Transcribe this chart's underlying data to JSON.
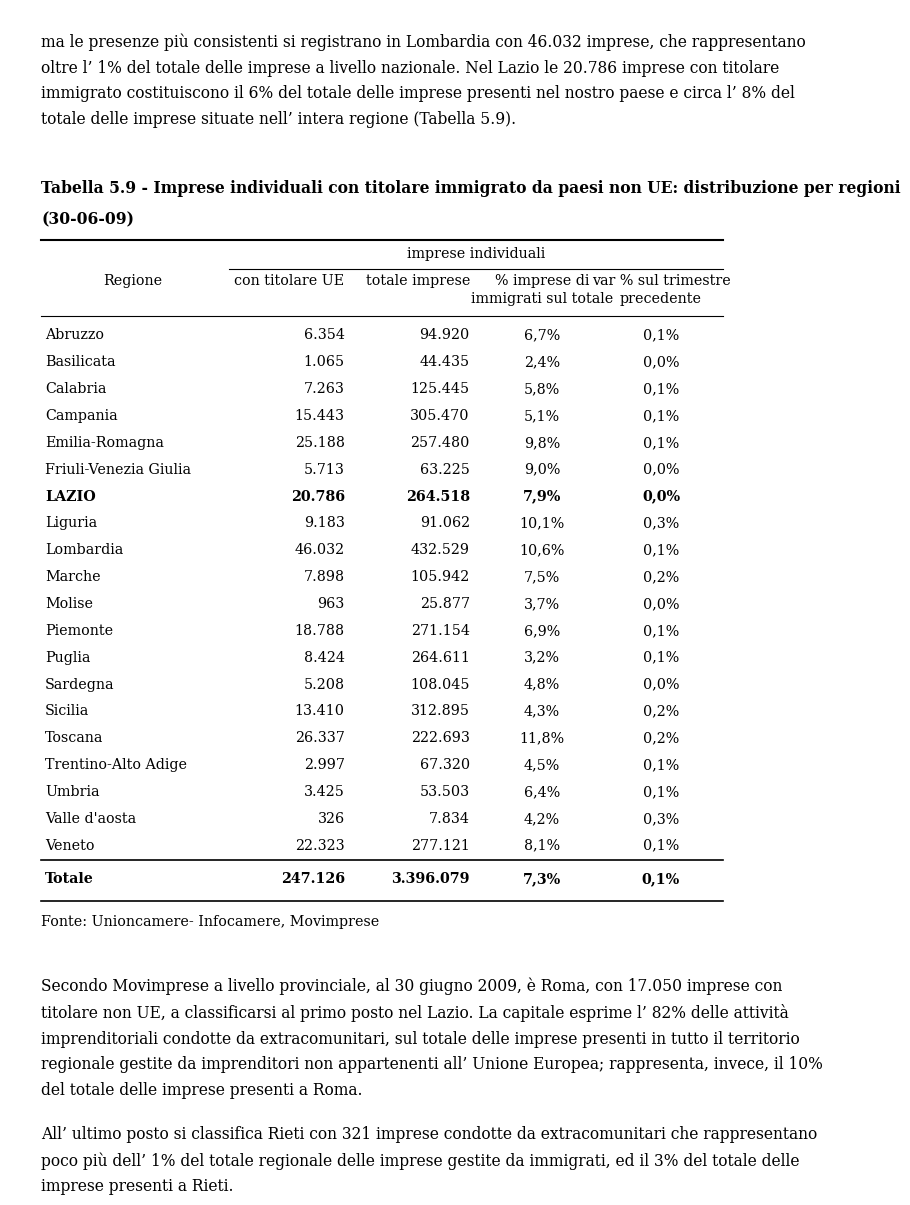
{
  "intro_text": "ma le presenze più consistenti si registrano in Lombardia con 46.032 imprese, che rappresentano\noltre l’ 1% del totale delle imprese a livello nazionale. Nel Lazio le 20.786 imprese con titolare\nimmigrato costituiscono il 6% del totale delle imprese presenti nel nostro paese e circa l’ 8% del\ntotale delle imprese situate nell’ intera regione (Tabella 5.9).",
  "table_title_bold": "Tabella 5.9 - Imprese individuali con titolare immigrato da paesi non UE: distribuzione per regioni",
  "table_title_line2": "(30-06-09)",
  "col_header_span": "imprese individuali",
  "col_headers": [
    "Regione",
    "con titolare UE",
    "totale imprese",
    "% imprese di\nimmigrati sul totale",
    "var % sul trimestre\nprecedente"
  ],
  "rows": [
    [
      "Abruzzo",
      "6.354",
      "94.920",
      "6,7%",
      "0,1%"
    ],
    [
      "Basilicata",
      "1.065",
      "44.435",
      "2,4%",
      "0,0%"
    ],
    [
      "Calabria",
      "7.263",
      "125.445",
      "5,8%",
      "0,1%"
    ],
    [
      "Campania",
      "15.443",
      "305.470",
      "5,1%",
      "0,1%"
    ],
    [
      "Emilia-Romagna",
      "25.188",
      "257.480",
      "9,8%",
      "0,1%"
    ],
    [
      "Friuli-Venezia Giulia",
      "5.713",
      "63.225",
      "9,0%",
      "0,0%"
    ],
    [
      "LAZIO",
      "20.786",
      "264.518",
      "7,9%",
      "0,0%"
    ],
    [
      "Liguria",
      "9.183",
      "91.062",
      "10,1%",
      "0,3%"
    ],
    [
      "Lombardia",
      "46.032",
      "432.529",
      "10,6%",
      "0,1%"
    ],
    [
      "Marche",
      "7.898",
      "105.942",
      "7,5%",
      "0,2%"
    ],
    [
      "Molise",
      "963",
      "25.877",
      "3,7%",
      "0,0%"
    ],
    [
      "Piemonte",
      "18.788",
      "271.154",
      "6,9%",
      "0,1%"
    ],
    [
      "Puglia",
      "8.424",
      "264.611",
      "3,2%",
      "0,1%"
    ],
    [
      "Sardegna",
      "5.208",
      "108.045",
      "4,8%",
      "0,0%"
    ],
    [
      "Sicilia",
      "13.410",
      "312.895",
      "4,3%",
      "0,2%"
    ],
    [
      "Toscana",
      "26.337",
      "222.693",
      "11,8%",
      "0,2%"
    ],
    [
      "Trentino-Alto Adige",
      "2.997",
      "67.320",
      "4,5%",
      "0,1%"
    ],
    [
      "Umbria",
      "3.425",
      "53.503",
      "6,4%",
      "0,1%"
    ],
    [
      "Valle d'aosta",
      "326",
      "7.834",
      "4,2%",
      "0,3%"
    ],
    [
      "Veneto",
      "22.323",
      "277.121",
      "8,1%",
      "0,1%"
    ]
  ],
  "totale_row": [
    "Totale",
    "247.126",
    "3.396.079",
    "7,3%",
    "0,1%"
  ],
  "bold_row_index": 6,
  "fonte_text": "Fonte: Unioncamere- Infocamere, Movimprese",
  "outro_text_1": "Secondo Movimprese a livello provinciale, al 30 giugno 2009, è Roma, con 17.050 imprese con\ntitolare non UE, a classificarsi al primo posto nel Lazio. La capitale esprime l’ 82% delle attività\nimprenditoriali condotte da extracomunitari, sul totale delle imprese presenti in tutto il territorio\nregionale gestite da imprenditori non appartenenti all’ Unione Europea; rappresenta, invece, il 10%\ndel totale delle imprese presenti a Roma.",
  "outro_text_2": "All’ ultimo posto si classifica Rieti con 321 imprese condotte da extracomunitari che rappresentano\npoco più dell’ 1% del totale regionale delle imprese gestite da immigrati, ed il 3% del totale delle\nimprese presenti a Rieti.",
  "bg_color": "#ffffff",
  "text_color": "#000000"
}
